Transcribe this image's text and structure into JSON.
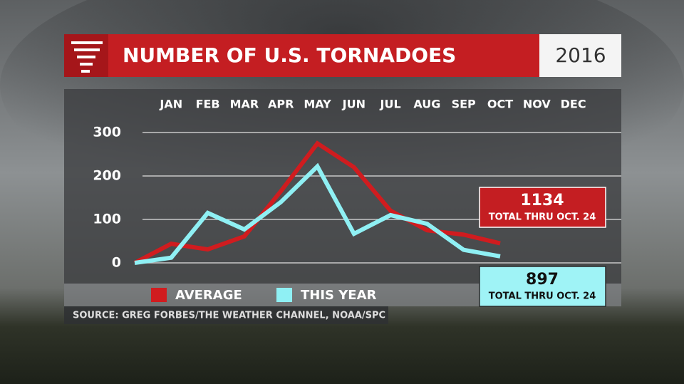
{
  "chart_data": {
    "type": "line",
    "title": "NUMBER OF U.S. TORNADOES",
    "subtitle": "2016",
    "categories": [
      null,
      "JAN",
      "FEB",
      "MAR",
      "APR",
      "MAY",
      "JUN",
      "JUL",
      "AUG",
      "SEP",
      "OCT",
      "NOV",
      "DEC"
    ],
    "series": [
      {
        "name": "AVERAGE",
        "color": "#d01c1f",
        "values": [
          0,
          44,
          31,
          61,
          165,
          275,
          220,
          120,
          75,
          65,
          45,
          null,
          null
        ]
      },
      {
        "name": "THIS YEAR",
        "color": "#8ff0f4",
        "values": [
          0,
          12,
          115,
          77,
          140,
          222,
          67,
          110,
          90,
          30,
          15,
          null,
          null
        ]
      }
    ],
    "ylim": [
      0,
      300
    ],
    "yticks": [
      0,
      100,
      200,
      300
    ],
    "grid": true,
    "annotations": [
      {
        "total": 1134,
        "text": "TOTAL THRU OCT. 24"
      },
      {
        "total": 897,
        "text": "TOTAL THRU OCT. 24"
      }
    ],
    "source": "SOURCE: GREG FORBES/THE WEATHER CHANNEL, NOAA/SPC"
  }
}
